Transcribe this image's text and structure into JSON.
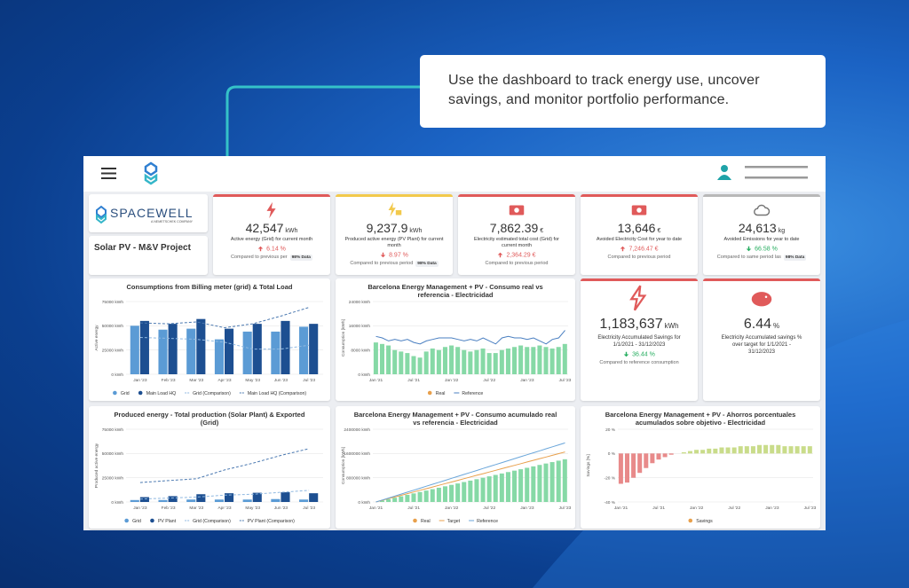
{
  "callout": {
    "text": "Use the dashboard to track energy use, uncover savings, and monitor portfolio performance."
  },
  "brand": {
    "name": "SPACEWELL",
    "tagline": "A NEMETSCHEK COMPANY"
  },
  "project": {
    "title": "Solar PV - M&V Project"
  },
  "kpis": [
    {
      "value": "42,547",
      "unit": "kWh",
      "label": "Active energy (Grid) for current month",
      "change": "6.14 %",
      "trend": "up",
      "change_color": "#e05a5a",
      "compare": "Compared to previous per",
      "badge": "98% Data",
      "accent": "#e05a5a"
    },
    {
      "value": "9,237.9",
      "unit": "kWh",
      "label": "Produced active energy (PV Plant) for current month",
      "change": "8.97 %",
      "trend": "down",
      "change_color": "#e05a5a",
      "compare": "Compared to previous period",
      "badge": "98% Data",
      "accent": "#f2c94c"
    },
    {
      "value": "7,862.39",
      "unit": "€",
      "label": "Electricity estimated total cost (Grid) for current month",
      "change": "2,364.29 €",
      "trend": "up",
      "change_color": "#e05a5a",
      "compare": "Compared to previous period",
      "accent": "#e05a5a"
    },
    {
      "value": "13,646",
      "unit": "€",
      "label": "Avoided Electricity Cost for year to date",
      "change": "7,246.47 €",
      "trend": "up",
      "change_color": "#e05a5a",
      "compare": "Compared to previous period",
      "accent": "#e05a5a"
    },
    {
      "value": "24,613",
      "unit": "kg",
      "label": "Avoided Emissions for year to date",
      "change": "66.58 %",
      "trend": "down",
      "change_color": "#27ae60",
      "compare": "Compared to same period las",
      "badge": "98% Data",
      "accent": "#b8b8b8"
    }
  ],
  "highlights": [
    {
      "value": "1,183,637",
      "unit": "kWh",
      "label": "Electricity Accumulated Savings for 1/1/2021 - 31/12/2023",
      "change": "36.44 %",
      "trend": "down",
      "change_color": "#27ae60",
      "compare": "Compared to reference consumption",
      "accent": "#e05a5a"
    },
    {
      "value": "6.44",
      "unit": "%",
      "label": "Electricity Accumulated savings % over target for 1/1/2021 - 31/12/2023",
      "accent": "#e05a5a"
    }
  ],
  "charts": [
    {
      "type": "bar",
      "title": "Consumptions from Billing meter (grid) & Total Load",
      "y_label": "Active energy",
      "grid": true,
      "categories": [
        "Jan '23",
        "Feb '23",
        "Mar '23",
        "Apr '23",
        "May '23",
        "Jun '23",
        "Jul '23"
      ],
      "ylim": [
        0,
        75000
      ],
      "yticks": [
        {
          "value": 0,
          "label": "0 kWh"
        },
        {
          "value": 25000,
          "label": "25000 kWh"
        },
        {
          "value": 50000,
          "label": "50000 kWh"
        },
        {
          "value": 75000,
          "label": "75000 kWh"
        }
      ],
      "series": [
        {
          "name": "Grid",
          "kind": "bar",
          "color": "#5b9bd5",
          "values": [
            50000,
            46000,
            47000,
            36000,
            44000,
            44000,
            49000
          ]
        },
        {
          "name": "Main Load HQ",
          "kind": "bar",
          "color": "#1d4f91",
          "values": [
            55000,
            52000,
            57000,
            47000,
            52000,
            55000,
            52000
          ]
        },
        {
          "name": "Grid (Comparison)",
          "kind": "line",
          "dashed": true,
          "color": "#8fb8e0",
          "values": [
            38000,
            37000,
            36000,
            33000,
            26000,
            26000,
            30000
          ]
        },
        {
          "name": "Main Load HQ (Comparison)",
          "kind": "line",
          "dashed": true,
          "color": "#4a78b0",
          "values": [
            53000,
            52000,
            54000,
            48000,
            52000,
            60000,
            69000
          ]
        }
      ]
    },
    {
      "type": "bar",
      "title": "Barcelona Energy Management + PV - Consumo real vs referencia - Electricidad",
      "y_label": "Consumption [kWh]",
      "grid": true,
      "categories": [
        "Jan '21",
        null,
        null,
        null,
        null,
        null,
        "Jul '21",
        null,
        null,
        null,
        null,
        null,
        "Jan '22",
        null,
        null,
        null,
        null,
        null,
        "Jul '22",
        null,
        null,
        null,
        null,
        null,
        "Jan '23",
        null,
        null,
        null,
        null,
        null,
        "Jul '23"
      ],
      "ylim": [
        0,
        24000
      ],
      "yticks": [
        {
          "value": 0,
          "label": "0 kWh"
        },
        {
          "value": 8000,
          "label": "8000 kWh"
        },
        {
          "value": 16000,
          "label": "16000 kWh"
        },
        {
          "value": 24000,
          "label": "24000 kWh"
        }
      ],
      "series": [
        {
          "name": "Real",
          "kind": "bar",
          "color": "#e8a04c",
          "bar_color": "#86d9a6",
          "values": [
            10500,
            10000,
            9500,
            8000,
            7500,
            7000,
            6000,
            5500,
            7500,
            8500,
            8000,
            9000,
            9500,
            9000,
            8000,
            7500,
            8000,
            8500,
            7000,
            7000,
            8000,
            8500,
            9000,
            9500,
            9000,
            9000,
            9500,
            9000,
            8500,
            9000,
            10000
          ]
        },
        {
          "name": "Reference",
          "kind": "line",
          "color": "#4a7fc1",
          "values": [
            12500,
            12000,
            11000,
            11500,
            11000,
            11500,
            10500,
            10000,
            11000,
            11500,
            12000,
            12000,
            12000,
            11500,
            11000,
            11500,
            11000,
            12000,
            11000,
            10000,
            12000,
            12500,
            12000,
            12000,
            11500,
            12000,
            11000,
            10000,
            11500,
            12000,
            14500
          ]
        }
      ]
    },
    {
      "type": "bar",
      "title": "Produced energy - Total production (Solar Plant) & Exported (Grid)",
      "y_label": "Produced active energy",
      "grid": true,
      "categories": [
        "Jan '23",
        "Feb '23",
        "Mar '23",
        "Apr '23",
        "May '23",
        "Jun '23",
        "Jul '23"
      ],
      "ylim": [
        0,
        75000
      ],
      "yticks": [
        {
          "value": 0,
          "label": "0 kWh"
        },
        {
          "value": 25000,
          "label": "25000 kWh"
        },
        {
          "value": 50000,
          "label": "50000 kWh"
        },
        {
          "value": 75000,
          "label": "75000 kWh"
        }
      ],
      "series": [
        {
          "name": "Grid",
          "kind": "bar",
          "color": "#5b9bd5",
          "values": [
            2000,
            2000,
            2500,
            2500,
            2500,
            3000,
            2500
          ]
        },
        {
          "name": "PV Plant",
          "kind": "bar",
          "color": "#1d4f91",
          "values": [
            5000,
            6000,
            8000,
            9000,
            9500,
            10000,
            9000
          ]
        },
        {
          "name": "Grid (Comparison)",
          "kind": "line",
          "dashed": true,
          "color": "#8fb8e0",
          "values": [
            3000,
            4000,
            5000,
            7000,
            8000,
            10000,
            12000
          ]
        },
        {
          "name": "PV Plant (Comparison)",
          "kind": "line",
          "dashed": true,
          "color": "#4a78b0",
          "values": [
            20000,
            22000,
            24000,
            33000,
            40000,
            48000,
            55000
          ]
        }
      ]
    },
    {
      "type": "bar",
      "title": "Barcelona Energy Management + PV - Consumo acumulado real vs referencia - Electricidad",
      "y_label": "Consumption [kWh]",
      "grid": true,
      "categories": [
        "Jan '21",
        null,
        null,
        null,
        null,
        null,
        "Jul '21",
        null,
        null,
        null,
        null,
        null,
        "Jan '22",
        null,
        null,
        null,
        null,
        null,
        "Jul '22",
        null,
        null,
        null,
        null,
        null,
        "Jan '23",
        null,
        null,
        null,
        null,
        null,
        "Jul '23"
      ],
      "ylim": [
        0,
        2400000
      ],
      "yticks": [
        {
          "value": 0,
          "label": "0 kWh"
        },
        {
          "value": 800000,
          "label": "800000 kWh"
        },
        {
          "value": 1600000,
          "label": "1600000 kWh"
        },
        {
          "value": 2400000,
          "label": "2400000 kWh"
        }
      ],
      "series": [
        {
          "name": "Real",
          "kind": "bar",
          "color": "#e8a04c",
          "bar_color": "#86d9a6",
          "values": [
            0,
            47000,
            94000,
            141000,
            188000,
            235000,
            282000,
            329000,
            376000,
            423000,
            470000,
            517000,
            564000,
            611000,
            658000,
            705000,
            752000,
            799000,
            846000,
            893000,
            940000,
            987000,
            1034000,
            1081000,
            1128000,
            1175000,
            1222000,
            1269000,
            1316000,
            1363000,
            1410000
          ]
        },
        {
          "name": "Target",
          "kind": "line",
          "color": "#e8a04c",
          "values": [
            0,
            55000,
            110000,
            165000,
            220000,
            275000,
            330000,
            385000,
            440000,
            495000,
            550000,
            605000,
            660000,
            715000,
            770000,
            825000,
            880000,
            935000,
            990000,
            1045000,
            1100000,
            1155000,
            1210000,
            1265000,
            1320000,
            1375000,
            1430000,
            1485000,
            1540000,
            1595000,
            1650000
          ]
        },
        {
          "name": "Reference",
          "kind": "line",
          "color": "#6aa6da",
          "values": [
            0,
            65000,
            130000,
            195000,
            260000,
            325000,
            390000,
            455000,
            520000,
            585000,
            650000,
            715000,
            780000,
            845000,
            910000,
            975000,
            1040000,
            1105000,
            1170000,
            1235000,
            1300000,
            1365000,
            1430000,
            1495000,
            1560000,
            1625000,
            1690000,
            1755000,
            1820000,
            1885000,
            1950000
          ]
        }
      ]
    },
    {
      "type": "bar",
      "title": "Barcelona Energy Management + PV - Ahorros porcentuales acumulados sobre objetivo - Electricidad",
      "y_label": "Savings [%]",
      "grid": true,
      "categories": [
        "Jan '21",
        null,
        null,
        null,
        null,
        null,
        "Jul '21",
        null,
        null,
        null,
        null,
        null,
        "Jan '22",
        null,
        null,
        null,
        null,
        null,
        "Jul '22",
        null,
        null,
        null,
        null,
        null,
        "Jan '23",
        null,
        null,
        null,
        null,
        null,
        "Jul '23"
      ],
      "ylim": [
        -40,
        20
      ],
      "yticks": [
        {
          "value": 20,
          "label": "20 %"
        },
        {
          "value": 0,
          "label": "0 %"
        },
        {
          "value": -20,
          "label": "-20 %"
        },
        {
          "value": -40,
          "label": "-40 %"
        }
      ],
      "series": [
        {
          "name": "Savings",
          "kind": "bar",
          "color": "#e8a04c",
          "bar_color": "#c9dc8a",
          "negative_color": "#e88a8a",
          "values": [
            -25,
            -24,
            -20,
            -16,
            -12,
            -8,
            -5,
            -3,
            -1,
            0,
            1,
            2,
            3,
            3,
            4,
            4,
            5,
            5,
            5,
            6,
            6,
            6,
            7,
            7,
            7,
            7,
            6,
            6,
            6,
            6,
            6
          ]
        }
      ]
    }
  ]
}
